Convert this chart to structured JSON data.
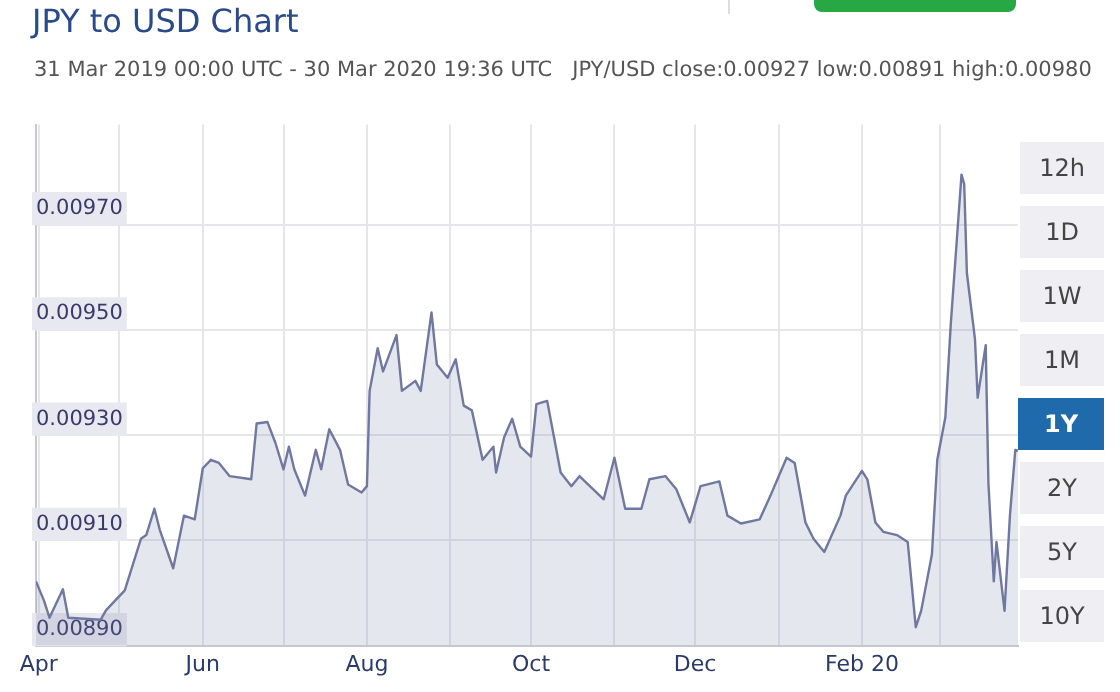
{
  "chart_data": {
    "type": "area",
    "title": "JPY to USD Chart",
    "subtitle": "31 Mar 2019 00:00 UTC - 30 Mar 2020 19:36 UTC   JPY/USD close:0.00927 low:0.00891 high:0.00980",
    "annotations": [
      "12h",
      "1D",
      "1W",
      "1M",
      "1Y",
      "2Y",
      "5Y",
      "10Y"
    ],
    "x": [
      "2019-03-31",
      "2019-04-03",
      "2019-04-05",
      "2019-04-10",
      "2019-04-12",
      "2019-04-24",
      "2019-04-26",
      "2019-05-03",
      "2019-05-09",
      "2019-05-11",
      "2019-05-14",
      "2019-05-16",
      "2019-05-21",
      "2019-05-25",
      "2019-05-29",
      "2019-06-01",
      "2019-06-04",
      "2019-06-07",
      "2019-06-11",
      "2019-06-19",
      "2019-06-21",
      "2019-06-25",
      "2019-06-28",
      "2019-07-01",
      "2019-07-03",
      "2019-07-05",
      "2019-07-09",
      "2019-07-13",
      "2019-07-15",
      "2019-07-18",
      "2019-07-22",
      "2019-07-25",
      "2019-07-30",
      "2019-08-01",
      "2019-08-02",
      "2019-08-05",
      "2019-08-07",
      "2019-08-12",
      "2019-08-14",
      "2019-08-19",
      "2019-08-21",
      "2019-08-25",
      "2019-08-27",
      "2019-08-31",
      "2019-09-03",
      "2019-09-06",
      "2019-09-09",
      "2019-09-13",
      "2019-09-17",
      "2019-09-18",
      "2019-09-21",
      "2019-09-24",
      "2019-09-27",
      "2019-10-01",
      "2019-10-03",
      "2019-10-07",
      "2019-10-12",
      "2019-10-16",
      "2019-10-19",
      "2019-10-28",
      "2019-11-01",
      "2019-11-05",
      "2019-11-11",
      "2019-11-14",
      "2019-11-20",
      "2019-11-24",
      "2019-11-29",
      "2019-12-03",
      "2019-12-10",
      "2019-12-13",
      "2019-12-18",
      "2019-12-25",
      "2019-12-29",
      "2020-01-04",
      "2020-01-07",
      "2020-01-11",
      "2020-01-14",
      "2020-01-18",
      "2020-01-24",
      "2020-01-26",
      "2020-02-01",
      "2020-02-03",
      "2020-02-06",
      "2020-02-09",
      "2020-02-14",
      "2020-02-18",
      "2020-02-21",
      "2020-02-23",
      "2020-02-27",
      "2020-02-29",
      "2020-03-03",
      "2020-03-05",
      "2020-03-09",
      "2020-03-10",
      "2020-03-11",
      "2020-03-14",
      "2020-03-15",
      "2020-03-18",
      "2020-03-19",
      "2020-03-21",
      "2020-03-22",
      "2020-03-25",
      "2020-03-27",
      "2020-03-29",
      "2020-03-30"
    ],
    "series": [
      {
        "color": "#7078a0",
        "values": [
          0.009022,
          0.008985,
          0.008953,
          0.009007,
          0.008953,
          0.008949,
          0.008967,
          0.009005,
          0.009103,
          0.00911,
          0.00916,
          0.00912,
          0.009047,
          0.009147,
          0.00914,
          0.009237,
          0.009253,
          0.009247,
          0.009222,
          0.009216,
          0.009322,
          0.009325,
          0.009285,
          0.009235,
          0.009278,
          0.009235,
          0.009185,
          0.009272,
          0.009235,
          0.009311,
          0.009272,
          0.009206,
          0.009191,
          0.009203,
          0.009384,
          0.009465,
          0.009421,
          0.00949,
          0.009384,
          0.009403,
          0.009384,
          0.009533,
          0.009434,
          0.009409,
          0.009444,
          0.009356,
          0.009347,
          0.009253,
          0.009278,
          0.009229,
          0.009296,
          0.009331,
          0.009278,
          0.009259,
          0.009359,
          0.009365,
          0.009229,
          0.009203,
          0.009222,
          0.009178,
          0.009257,
          0.00916,
          0.00916,
          0.009216,
          0.009222,
          0.009197,
          0.009134,
          0.009203,
          0.009212,
          0.009147,
          0.009132,
          0.00914,
          0.009185,
          0.009257,
          0.009247,
          0.009134,
          0.009103,
          0.009078,
          0.009147,
          0.009185,
          0.009232,
          0.009216,
          0.009134,
          0.009116,
          0.00911,
          0.009097,
          0.008935,
          0.008966,
          0.009073,
          0.009253,
          0.009334,
          0.00951,
          0.009795,
          0.009777,
          0.009608,
          0.009483,
          0.009371,
          0.009471,
          0.009209,
          0.009022,
          0.009097,
          0.008966,
          0.009147,
          0.009272,
          0.00927
        ]
      }
    ],
    "xlim": [
      "2019-03-31",
      "2020-03-30"
    ],
    "xticks": [
      {
        "value": "2019-04-01",
        "label": "Apr"
      },
      {
        "value": "2019-05-01",
        "label": null
      },
      {
        "value": "2019-06-01",
        "label": "Jun"
      },
      {
        "value": "2019-07-01",
        "label": null
      },
      {
        "value": "2019-08-01",
        "label": "Aug"
      },
      {
        "value": "2019-09-01",
        "label": null
      },
      {
        "value": "2019-10-01",
        "label": "Oct"
      },
      {
        "value": "2019-11-01",
        "label": null
      },
      {
        "value": "2019-12-01",
        "label": "Dec"
      },
      {
        "value": "2020-01-01",
        "label": null
      },
      {
        "value": "2020-02-01",
        "label": "Feb 20"
      },
      {
        "value": "2020-03-01",
        "label": null
      }
    ],
    "ylim": [
      0.0089,
      0.00989
    ],
    "yticks": [
      {
        "value": 0.0089,
        "label": "0.00890"
      },
      {
        "value": 0.0091,
        "label": "0.00910"
      },
      {
        "value": 0.0093,
        "label": "0.00930"
      },
      {
        "value": 0.0095,
        "label": "0.00950"
      },
      {
        "value": 0.0097,
        "label": "0.00970"
      }
    ],
    "grid": true,
    "legend": false,
    "marker": "none",
    "line_style": "solid"
  }
}
